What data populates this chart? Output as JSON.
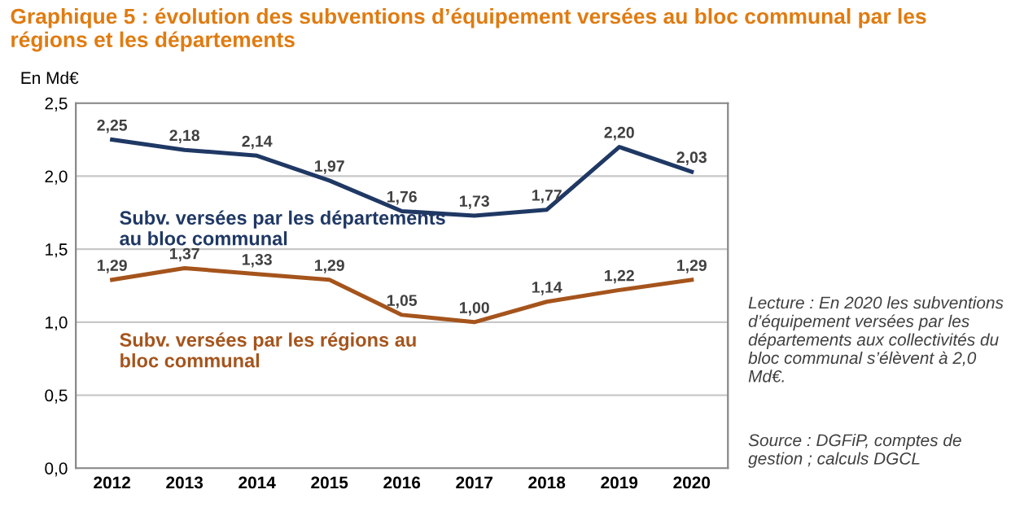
{
  "chart_data": {
    "type": "line",
    "title": "Graphique 5 : évolution des subventions d’équipement versées au bloc communal par les régions et les départements",
    "ylabel": "En Md€",
    "categories": [
      "2012",
      "2013",
      "2014",
      "2015",
      "2016",
      "2017",
      "2018",
      "2019",
      "2020"
    ],
    "series": [
      {
        "name": "Subv. versées par les départements au bloc communal",
        "color": "#1f3864",
        "values": [
          2.25,
          2.18,
          2.14,
          1.97,
          1.76,
          1.73,
          1.77,
          2.2,
          2.03
        ],
        "value_labels": [
          "2,25",
          "2,18",
          "2,14",
          "1,97",
          "1,76",
          "1,73",
          "1,77",
          "2,20",
          "2,03"
        ]
      },
      {
        "name": "Subv. versées par les régions au bloc communal",
        "color": "#a5541c",
        "values": [
          1.29,
          1.37,
          1.33,
          1.29,
          1.05,
          1.0,
          1.14,
          1.22,
          1.29
        ],
        "value_labels": [
          "1,29",
          "1,37",
          "1,33",
          "1,29",
          "1,05",
          "1,00",
          "1,14",
          "1,22",
          "1,29"
        ]
      }
    ],
    "ylim": [
      0,
      2.5
    ],
    "yticks": [
      {
        "value": 0,
        "label": "0,0"
      },
      {
        "value": 0.5,
        "label": "0,5"
      },
      {
        "value": 1,
        "label": "1,0"
      },
      {
        "value": 1.5,
        "label": "1,5"
      },
      {
        "value": 2,
        "label": "2,0"
      },
      {
        "value": 2.5,
        "label": "2,5"
      }
    ],
    "grid": "y",
    "legend": false,
    "marker": "none",
    "line_style": "solid",
    "annotations": [
      "Lecture : En 2020 les subventions d’équipement versées par les départements aux collectivités du bloc communal s’élèvent à 2,0 Md€.",
      "Source : DGFiP, comptes de gestion ; calculs DGCL"
    ]
  }
}
